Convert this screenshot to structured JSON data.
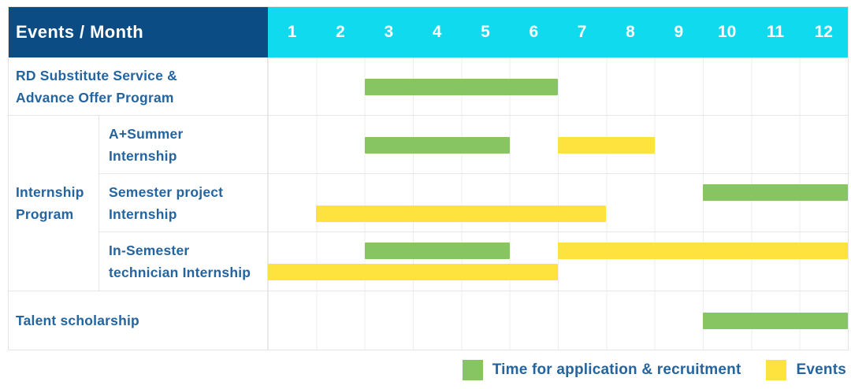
{
  "header": {
    "corner_label": "Events / Month",
    "months": [
      "1",
      "2",
      "3",
      "4",
      "5",
      "6",
      "7",
      "8",
      "9",
      "10",
      "11",
      "12"
    ]
  },
  "colors": {
    "navy_header": "#0b4c84",
    "cyan_header": "#10dbee",
    "recruitment_green": "#87c462",
    "event_yellow": "#fee33e",
    "label_text_blue": "#24649f"
  },
  "group_label": "Internship\nProgram",
  "chart_data": {
    "type": "gantt",
    "title": "Events / Month",
    "x_unit": "month",
    "x_range": [
      1,
      12
    ],
    "x_ticks": [
      1,
      2,
      3,
      4,
      5,
      6,
      7,
      8,
      9,
      10,
      11,
      12
    ],
    "legend_position": "bottom-right",
    "grid": true,
    "rows": [
      {
        "label": "RD Substitute Service &\nAdvance Offer Program",
        "group": null,
        "bars": [
          {
            "kind": "recruitment",
            "start_month": 3,
            "end_month": 6,
            "lane": "center"
          }
        ]
      },
      {
        "label": "A+Summer\nInternship",
        "group": "Internship Program",
        "bars": [
          {
            "kind": "recruitment",
            "start_month": 3,
            "end_month": 5,
            "lane": "center"
          },
          {
            "kind": "event",
            "start_month": 7,
            "end_month": 8,
            "lane": "center"
          }
        ]
      },
      {
        "label": "Semester project\nInternship",
        "group": "Internship Program",
        "bars": [
          {
            "kind": "recruitment",
            "start_month": 10,
            "end_month": 12,
            "lane": "top"
          },
          {
            "kind": "event",
            "start_month": 2,
            "end_month": 7,
            "lane": "bottom"
          }
        ]
      },
      {
        "label": "In-Semester\ntechnician Internship",
        "group": "Internship Program",
        "bars": [
          {
            "kind": "recruitment",
            "start_month": 3,
            "end_month": 5,
            "lane": "top"
          },
          {
            "kind": "event",
            "start_month": 7,
            "end_month": 12,
            "lane": "top"
          },
          {
            "kind": "event",
            "start_month": 1,
            "end_month": 6,
            "lane": "bottom"
          }
        ]
      },
      {
        "label": "Talent scholarship",
        "group": null,
        "bars": [
          {
            "kind": "recruitment",
            "start_month": 10,
            "end_month": 12,
            "lane": "center"
          }
        ]
      }
    ]
  },
  "legend": {
    "items": [
      {
        "kind": "recruitment",
        "label": "Time for application & recruitment",
        "color": "#87c462"
      },
      {
        "kind": "event",
        "label": "Events",
        "color": "#fee33e"
      }
    ]
  }
}
